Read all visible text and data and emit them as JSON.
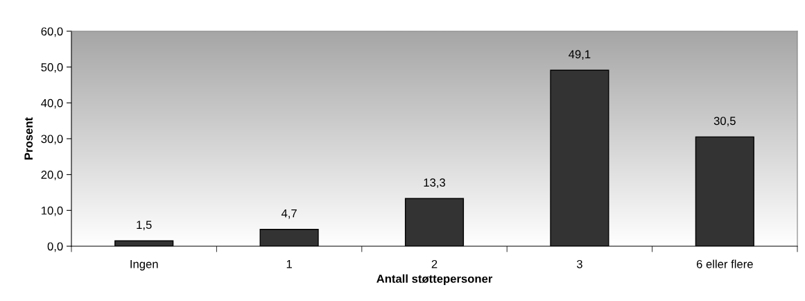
{
  "chart_data": {
    "type": "bar",
    "xlabel": "Antall støttepersoner",
    "ylabel": "Prosent",
    "categories": [
      "Ingen",
      "1",
      "2",
      "3",
      "6 eller flere"
    ],
    "values": [
      1.5,
      4.7,
      13.3,
      49.1,
      30.5
    ],
    "value_labels": [
      "1,5",
      "4,7",
      "13,3",
      "49,1",
      "30,5"
    ],
    "color": "#333333",
    "ylim": [
      0,
      60
    ],
    "yticks": [
      {
        "value": 0,
        "label": "0,0"
      },
      {
        "value": 10,
        "label": "10,0"
      },
      {
        "value": 20,
        "label": "20,0"
      },
      {
        "value": 30,
        "label": "30,0"
      },
      {
        "value": 40,
        "label": "40,0"
      },
      {
        "value": 50,
        "label": "50,0"
      },
      {
        "value": 60,
        "label": "60,0"
      }
    ],
    "grid": false,
    "legend": false
  }
}
